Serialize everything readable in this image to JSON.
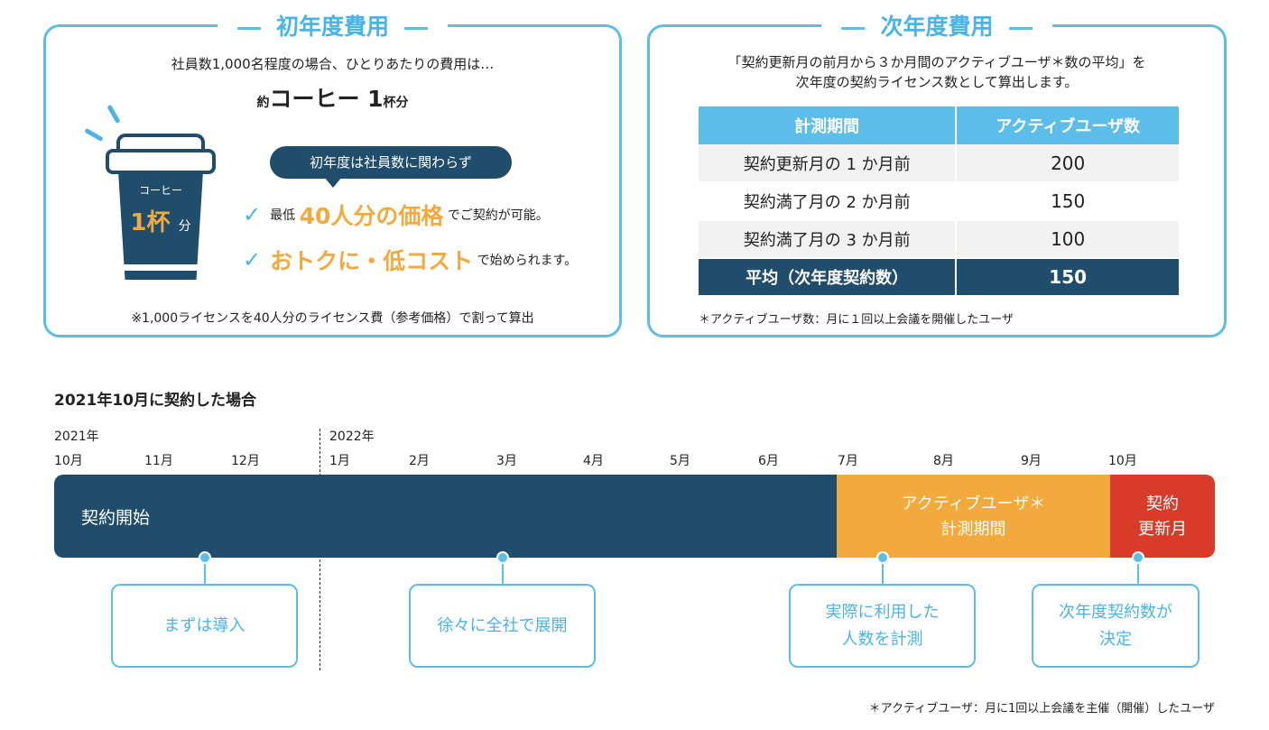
{
  "colors": {
    "accent_blue": "#5bbde8",
    "navy": "#1f4d6b",
    "orange": "#f2aa3d",
    "red": "#d93b2b"
  },
  "first_year": {
    "title": "初年度費用",
    "intro": "社員数1,000名程度の場合、ひとりあたりの費用は…",
    "coffee_prefix": "約",
    "coffee_main": "コーヒー 1",
    "coffee_suffix": "杯分",
    "cup_label": "コーヒー",
    "cup_amount": "1杯",
    "cup_unit": "分",
    "bubble": "初年度は社員数に関わらず",
    "bullet1_pre": "最低",
    "bullet1_hl": "40人分の価格",
    "bullet1_post": "でご契約が可能。",
    "bullet2_hl": "おトクに・低コスト",
    "bullet2_post": "で始められます。",
    "note": "※1,000ライセンスを40人分のライセンス費（参考価格）で割って算出",
    "icons": [
      "coffee-cup-icon",
      "check-icon"
    ]
  },
  "next_year": {
    "title": "次年度費用",
    "intro_line1": "「契約更新月の前月から３か月間のアクティブユーザ＊数の平均」を",
    "intro_line2": "次年度の契約ライセンス数として算出します。",
    "table": {
      "headers": [
        "計測期間",
        "アクティブユーザ数"
      ],
      "rows": [
        [
          "契約更新月の 1 か月前",
          "200"
        ],
        [
          "契約満了月の 2 か月前",
          "150"
        ],
        [
          "契約満了月の 3 か月前",
          "100"
        ]
      ],
      "avg": [
        "平均（次年度契約数）",
        "150"
      ]
    },
    "note": "＊アクティブユーザ数：月に１回以上会議を開催したユーザ"
  },
  "timeline": {
    "title": "2021年10月に契約した場合",
    "year1": "2021年",
    "year2": "2022年",
    "months": [
      "10月",
      "11月",
      "12月",
      "1月",
      "2月",
      "3月",
      "4月",
      "5月",
      "6月",
      "7月",
      "8月",
      "9月",
      "10月"
    ],
    "bar_main": "契約開始",
    "bar_active_line1": "アクティブユーザ＊",
    "bar_active_line2": "計測期間",
    "bar_renew_line1": "契約",
    "bar_renew_line2": "更新月",
    "callouts": {
      "c1": "まずは導入",
      "c2": "徐々に全社で展開",
      "c3_line1": "実際に利用した",
      "c3_line2": "人数を計測",
      "c4_line1": "次年度契約数が",
      "c4_line2": "決定"
    },
    "footnote": "＊アクティブユーザ：月に1回以上会議を主催（開催）したユーザ"
  }
}
